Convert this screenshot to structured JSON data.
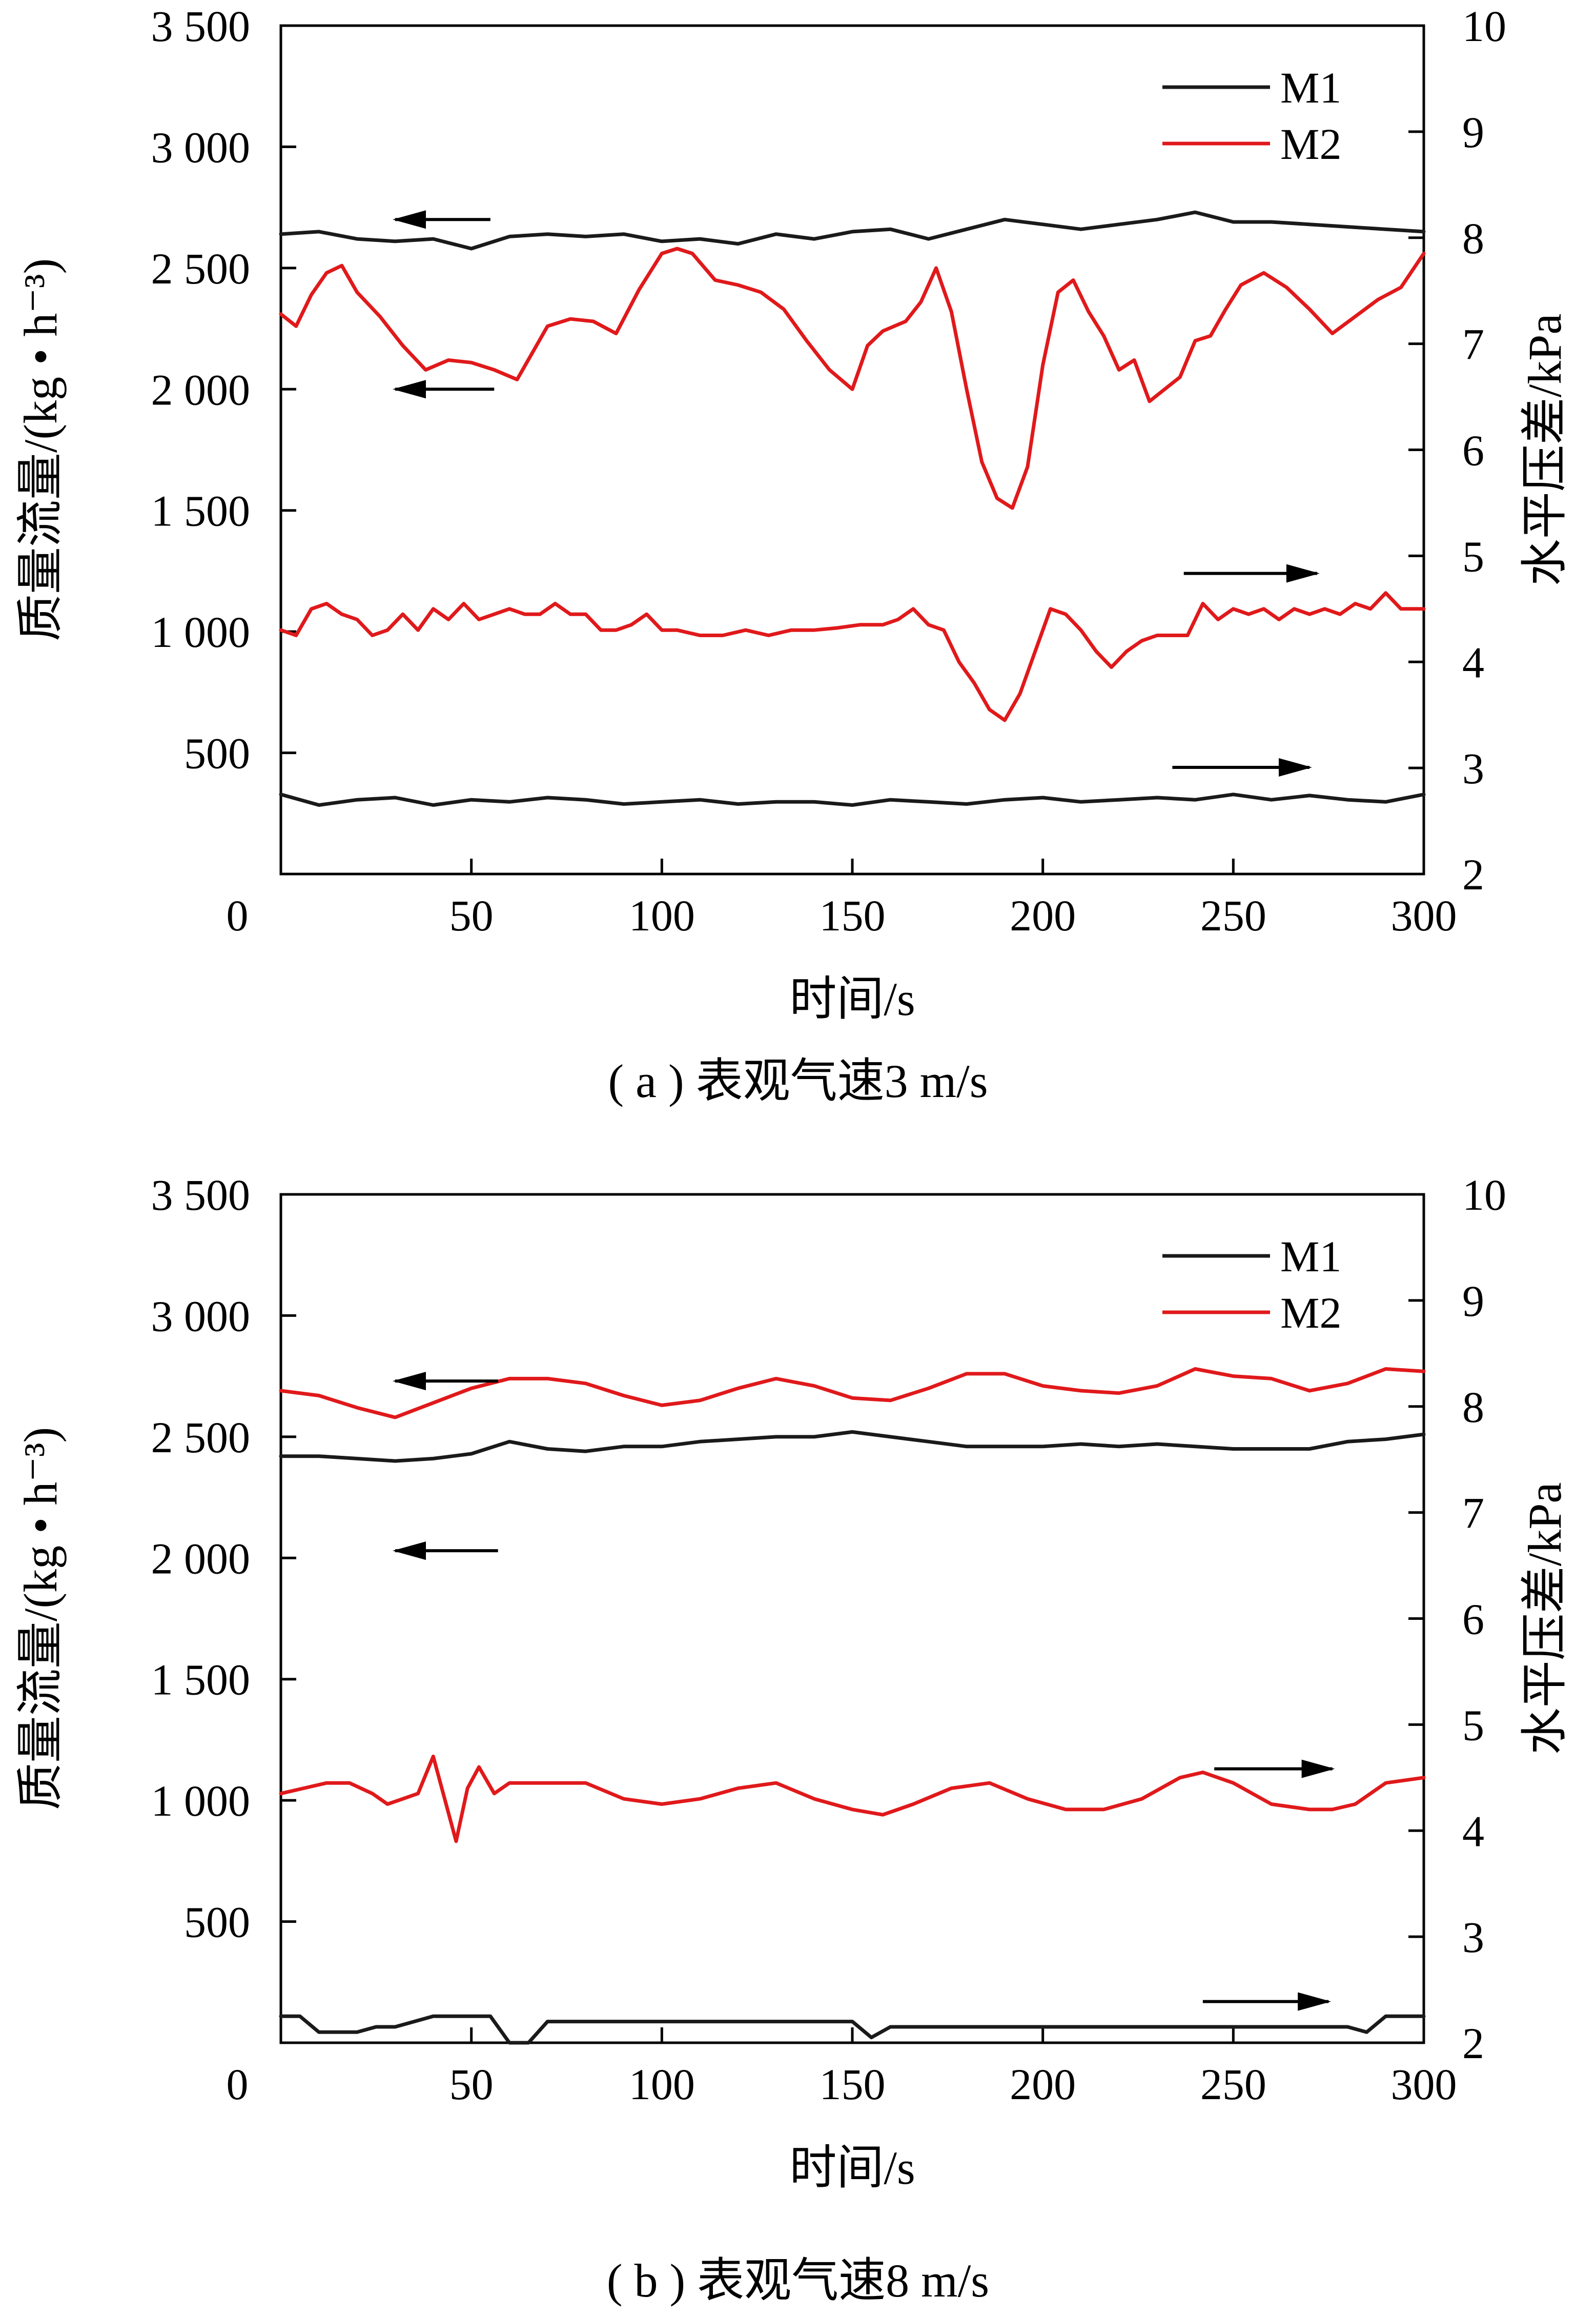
{
  "chart_data": [
    {
      "type": "line",
      "caption": "( a ) 表观气速3 m/s",
      "xlabel": "时间/s",
      "ylabel_left": "质量流量/(kg • h⁻³)",
      "ylabel_right": "水平压差/kPa",
      "xlim": [
        0,
        300
      ],
      "ylim_left": [
        0,
        3500
      ],
      "ylim_right": [
        2,
        10
      ],
      "x_ticks": [
        "0",
        "50",
        "100",
        "150",
        "200",
        "250",
        "300"
      ],
      "y_left_ticks": [
        "500",
        "1 000",
        "1 500",
        "2 000",
        "2 500",
        "3 000",
        "3 500"
      ],
      "y_right_ticks": [
        "2",
        "3",
        "4",
        "5",
        "6",
        "7",
        "8",
        "9",
        "10"
      ],
      "legend": [
        "M1",
        "M2"
      ],
      "legend_position": "top-right",
      "colors": {
        "M1": "#1a1a1a",
        "M2": "#e0191b"
      },
      "series": [
        {
          "name": "M1",
          "axis": "left",
          "color": "#1a1a1a",
          "x": [
            0,
            10,
            20,
            30,
            40,
            50,
            60,
            70,
            80,
            90,
            100,
            110,
            120,
            130,
            140,
            150,
            160,
            170,
            180,
            190,
            200,
            210,
            220,
            230,
            240,
            250,
            260,
            270,
            280,
            290,
            300
          ],
          "y": [
            2640,
            2650,
            2620,
            2610,
            2620,
            2580,
            2630,
            2640,
            2630,
            2640,
            2610,
            2620,
            2600,
            2640,
            2620,
            2650,
            2660,
            2620,
            2660,
            2700,
            2680,
            2660,
            2680,
            2700,
            2730,
            2690,
            2690,
            2680,
            2670,
            2660,
            2650
          ]
        },
        {
          "name": "M2",
          "axis": "left",
          "color": "#e0191b",
          "x": [
            0,
            4,
            8,
            12,
            16,
            20,
            26,
            32,
            38,
            44,
            50,
            56,
            62,
            66,
            70,
            76,
            82,
            88,
            94,
            100,
            104,
            108,
            114,
            120,
            126,
            132,
            138,
            144,
            150,
            154,
            158,
            164,
            168,
            172,
            176,
            180,
            184,
            188,
            192,
            196,
            200,
            204,
            208,
            212,
            216,
            220,
            224,
            228,
            232,
            236,
            240,
            244,
            248,
            252,
            258,
            264,
            270,
            276,
            282,
            288,
            294,
            300
          ],
          "y": [
            2310,
            2260,
            2390,
            2480,
            2510,
            2400,
            2300,
            2180,
            2080,
            2120,
            2110,
            2080,
            2040,
            2150,
            2260,
            2290,
            2280,
            2230,
            2410,
            2560,
            2580,
            2560,
            2450,
            2430,
            2400,
            2330,
            2200,
            2080,
            2000,
            2180,
            2240,
            2280,
            2360,
            2500,
            2320,
            2000,
            1700,
            1550,
            1510,
            1680,
            2100,
            2400,
            2450,
            2320,
            2220,
            2080,
            2120,
            1950,
            2000,
            2050,
            2200,
            2220,
            2330,
            2430,
            2480,
            2420,
            2330,
            2230,
            2300,
            2370,
            2420,
            2560
          ]
        },
        {
          "name": "M2",
          "axis": "right",
          "color": "#e0191b",
          "x": [
            0,
            4,
            8,
            12,
            16,
            20,
            24,
            28,
            32,
            36,
            40,
            44,
            48,
            52,
            56,
            60,
            64,
            68,
            72,
            76,
            80,
            84,
            88,
            92,
            96,
            100,
            104,
            110,
            116,
            122,
            128,
            134,
            140,
            146,
            152,
            158,
            162,
            166,
            170,
            174,
            178,
            182,
            186,
            190,
            194,
            198,
            202,
            206,
            210,
            214,
            218,
            222,
            226,
            230,
            234,
            238,
            242,
            246,
            250,
            254,
            258,
            262,
            266,
            270,
            274,
            278,
            282,
            286,
            290,
            294,
            300
          ],
          "y": [
            4.3,
            4.25,
            4.5,
            4.55,
            4.45,
            4.4,
            4.25,
            4.3,
            4.45,
            4.3,
            4.5,
            4.4,
            4.55,
            4.4,
            4.45,
            4.5,
            4.45,
            4.45,
            4.55,
            4.45,
            4.45,
            4.3,
            4.3,
            4.35,
            4.45,
            4.3,
            4.3,
            4.25,
            4.25,
            4.3,
            4.25,
            4.3,
            4.3,
            4.32,
            4.35,
            4.35,
            4.4,
            4.5,
            4.35,
            4.3,
            4.0,
            3.8,
            3.55,
            3.45,
            3.7,
            4.1,
            4.5,
            4.45,
            4.3,
            4.1,
            3.95,
            4.1,
            4.2,
            4.25,
            4.25,
            4.25,
            4.55,
            4.4,
            4.5,
            4.45,
            4.5,
            4.4,
            4.5,
            4.45,
            4.5,
            4.45,
            4.55,
            4.5,
            4.65,
            4.5,
            4.5
          ]
        },
        {
          "name": "M1",
          "axis": "right",
          "color": "#1a1a1a",
          "x": [
            0,
            10,
            20,
            30,
            40,
            50,
            60,
            70,
            80,
            90,
            100,
            110,
            120,
            130,
            140,
            150,
            160,
            170,
            180,
            190,
            200,
            210,
            220,
            230,
            240,
            250,
            260,
            270,
            280,
            290,
            300
          ],
          "y": [
            2.75,
            2.65,
            2.7,
            2.72,
            2.65,
            2.7,
            2.68,
            2.72,
            2.7,
            2.66,
            2.68,
            2.7,
            2.66,
            2.68,
            2.68,
            2.65,
            2.7,
            2.68,
            2.66,
            2.7,
            2.72,
            2.68,
            2.7,
            2.72,
            2.7,
            2.75,
            2.7,
            2.74,
            2.7,
            2.68,
            2.75
          ]
        }
      ],
      "annotations": [
        {
          "type": "arrow",
          "direction": "left",
          "x": [
            30,
            55
          ],
          "y_left": 2700
        },
        {
          "type": "arrow",
          "direction": "left",
          "x": [
            30,
            56
          ],
          "y_left": 2000
        },
        {
          "type": "arrow",
          "direction": "right",
          "x": [
            237,
            272
          ],
          "y_left": 1240
        },
        {
          "type": "arrow",
          "direction": "right",
          "x": [
            234,
            270
          ],
          "y_left": 440
        }
      ]
    },
    {
      "type": "line",
      "caption": "( b ) 表观气速8 m/s",
      "xlabel": "时间/s",
      "ylabel_left": "质量流量/(kg • h⁻³)",
      "ylabel_right": "水平压差/kPa",
      "xlim": [
        0,
        300
      ],
      "ylim_left": [
        0,
        3500
      ],
      "ylim_right": [
        2,
        10
      ],
      "x_ticks": [
        "0",
        "50",
        "100",
        "150",
        "200",
        "250",
        "300"
      ],
      "y_left_ticks": [
        "500",
        "1 000",
        "1 500",
        "2 000",
        "2 500",
        "3 000",
        "3 500"
      ],
      "y_right_ticks": [
        "2",
        "3",
        "4",
        "5",
        "6",
        "7",
        "8",
        "9",
        "10"
      ],
      "legend": [
        "M1",
        "M2"
      ],
      "legend_position": "top-right",
      "colors": {
        "M1": "#1a1a1a",
        "M2": "#e0191b"
      },
      "series": [
        {
          "name": "M2",
          "axis": "left",
          "color": "#e0191b",
          "x": [
            0,
            10,
            20,
            30,
            40,
            50,
            60,
            70,
            80,
            90,
            100,
            110,
            120,
            130,
            140,
            150,
            160,
            170,
            180,
            190,
            200,
            210,
            220,
            230,
            240,
            250,
            260,
            270,
            280,
            290,
            300
          ],
          "y": [
            2690,
            2670,
            2620,
            2580,
            2640,
            2700,
            2740,
            2740,
            2720,
            2670,
            2630,
            2650,
            2700,
            2740,
            2710,
            2660,
            2650,
            2700,
            2760,
            2760,
            2710,
            2690,
            2680,
            2710,
            2780,
            2750,
            2740,
            2690,
            2720,
            2780,
            2770
          ]
        },
        {
          "name": "M1",
          "axis": "left",
          "color": "#1a1a1a",
          "x": [
            0,
            10,
            20,
            30,
            40,
            50,
            60,
            70,
            80,
            90,
            100,
            110,
            120,
            130,
            140,
            150,
            160,
            170,
            180,
            190,
            200,
            210,
            220,
            230,
            240,
            250,
            260,
            270,
            280,
            290,
            300
          ],
          "y": [
            2420,
            2420,
            2410,
            2400,
            2410,
            2430,
            2480,
            2450,
            2440,
            2460,
            2460,
            2480,
            2490,
            2500,
            2500,
            2520,
            2500,
            2480,
            2460,
            2460,
            2460,
            2470,
            2460,
            2470,
            2460,
            2450,
            2450,
            2450,
            2480,
            2490,
            2510
          ]
        },
        {
          "name": "M2",
          "axis": "right",
          "color": "#e0191b",
          "x": [
            0,
            6,
            12,
            18,
            24,
            28,
            32,
            36,
            40,
            43,
            46,
            49,
            52,
            56,
            60,
            70,
            80,
            90,
            100,
            110,
            120,
            130,
            140,
            150,
            158,
            166,
            176,
            186,
            196,
            206,
            216,
            226,
            236,
            242,
            250,
            260,
            270,
            276,
            282,
            290,
            300
          ],
          "y": [
            4.35,
            4.4,
            4.45,
            4.45,
            4.35,
            4.25,
            4.3,
            4.35,
            4.7,
            4.3,
            3.9,
            4.4,
            4.6,
            4.35,
            4.45,
            4.45,
            4.45,
            4.3,
            4.25,
            4.3,
            4.4,
            4.45,
            4.3,
            4.2,
            4.15,
            4.25,
            4.4,
            4.45,
            4.3,
            4.2,
            4.2,
            4.3,
            4.5,
            4.55,
            4.45,
            4.25,
            4.2,
            4.2,
            4.25,
            4.45,
            4.5
          ]
        },
        {
          "name": "M1",
          "axis": "right",
          "color": "#1a1a1a",
          "x": [
            0,
            5,
            10,
            15,
            20,
            25,
            30,
            35,
            40,
            45,
            50,
            55,
            60,
            65,
            70,
            80,
            90,
            100,
            110,
            120,
            130,
            140,
            145,
            150,
            155,
            160,
            170,
            180,
            190,
            200,
            210,
            220,
            230,
            240,
            250,
            260,
            270,
            280,
            285,
            290,
            300
          ],
          "y": [
            2.25,
            2.25,
            2.1,
            2.1,
            2.1,
            2.15,
            2.15,
            2.2,
            2.25,
            2.25,
            2.25,
            2.25,
            2.0,
            2.0,
            2.2,
            2.2,
            2.2,
            2.2,
            2.2,
            2.2,
            2.2,
            2.2,
            2.2,
            2.2,
            2.05,
            2.15,
            2.15,
            2.15,
            2.15,
            2.15,
            2.15,
            2.15,
            2.15,
            2.15,
            2.15,
            2.15,
            2.15,
            2.15,
            2.1,
            2.25,
            2.25
          ]
        }
      ],
      "annotations": [
        {
          "type": "arrow",
          "direction": "left",
          "x": [
            30,
            57
          ],
          "y_left": 2730
        },
        {
          "type": "arrow",
          "direction": "left",
          "x": [
            30,
            57
          ],
          "y_left": 2030
        },
        {
          "type": "arrow",
          "direction": "right",
          "x": [
            245,
            276
          ],
          "y_left": 1130
        },
        {
          "type": "arrow",
          "direction": "right",
          "x": [
            242,
            275
          ],
          "y_left": 170
        }
      ]
    }
  ]
}
